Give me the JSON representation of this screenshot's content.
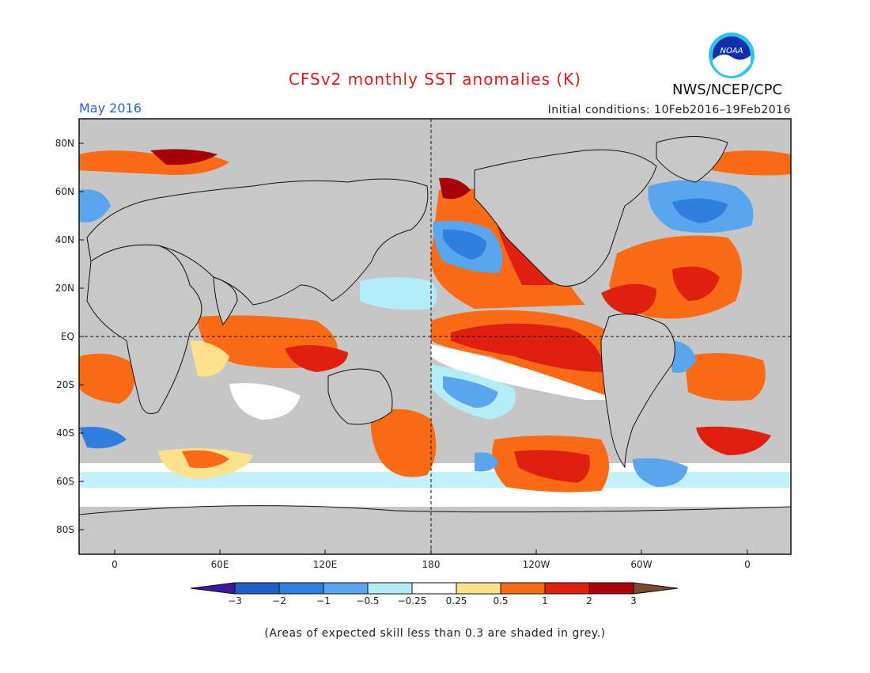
{
  "header": {
    "title": "CFSv2 monthly SST anomalies (K)",
    "month": "May 2016",
    "initial_conditions": "Initial conditions: 10Feb2016–19Feb2016",
    "org": "NWS/NCEP/CPC",
    "logo_text": "NOAA"
  },
  "map": {
    "lat_labels": [
      "80N",
      "60N",
      "40N",
      "20N",
      "EQ",
      "20S",
      "40S",
      "60S",
      "80S"
    ],
    "lon_labels": [
      "0",
      "60E",
      "120E",
      "180",
      "120W",
      "60W",
      "0"
    ],
    "land_color": "#c8c8c8",
    "grey_mask_color": "#c0c0c0"
  },
  "colorbar": {
    "ticks": [
      "−3",
      "−2",
      "−1",
      "−0.5",
      "−0.25",
      "0.25",
      "0.5",
      "1",
      "2",
      "3"
    ],
    "colors": [
      "#3a1a9a",
      "#1e5fc8",
      "#2f7ee0",
      "#5aa5ee",
      "#b4ecf8",
      "#ffffff",
      "#fde18c",
      "#fb6a15",
      "#e0200e",
      "#a8000a",
      "#7a4a30"
    ]
  },
  "note": "(Areas of expected skill less than 0.3 are shaded in grey.)"
}
